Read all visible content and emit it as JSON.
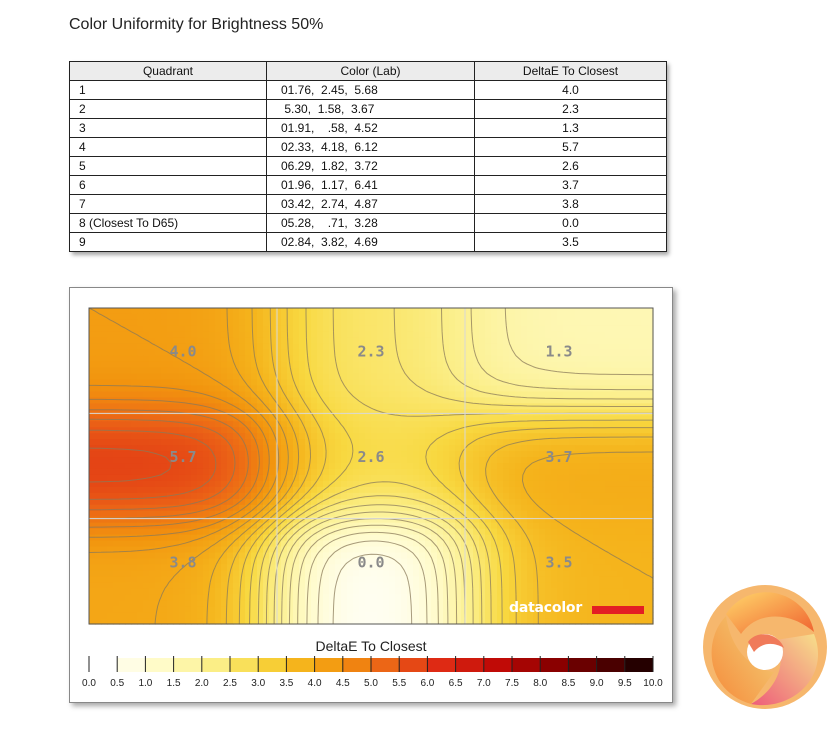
{
  "page_title": "Color Uniformity for Brightness 50%",
  "table": {
    "headers": [
      "Quadrant",
      "Color (Lab)",
      "DeltaE To Closest"
    ],
    "rows": [
      {
        "quadrant": "1",
        "lab": "01.76,  2.45,  5.68",
        "delta": "4.0"
      },
      {
        "quadrant": "2",
        "lab": " 5.30,  1.58,  3.67",
        "delta": "2.3"
      },
      {
        "quadrant": "3",
        "lab": "01.91,    .58,  4.52",
        "delta": "1.3"
      },
      {
        "quadrant": "4",
        "lab": "02.33,  4.18,  6.12",
        "delta": "5.7"
      },
      {
        "quadrant": "5",
        "lab": "06.29,  1.82,  3.72",
        "delta": "2.6"
      },
      {
        "quadrant": "6",
        "lab": "01.96,  1.17,  6.41",
        "delta": "3.7"
      },
      {
        "quadrant": "7",
        "lab": "03.42,  2.74,  4.87",
        "delta": "3.8"
      },
      {
        "quadrant": "8 (Closest To D65)",
        "lab": "05.28,    .71,  3.28",
        "delta": "0.0"
      },
      {
        "quadrant": "9",
        "lab": "02.84,  3.82,  4.69",
        "delta": "3.5"
      }
    ]
  },
  "chart_data": {
    "type": "heatmap",
    "title": "DeltaE To Closest",
    "grid": {
      "rows": 3,
      "cols": 3,
      "values": [
        [
          4.0,
          2.3,
          1.3
        ],
        [
          5.7,
          2.6,
          3.7
        ],
        [
          3.8,
          0.0,
          3.5
        ]
      ],
      "labels": [
        "4.0",
        "2.3",
        "1.3",
        "5.7",
        "2.6",
        "3.7",
        "3.8",
        "0.0",
        "3.5"
      ]
    },
    "scale": {
      "min": 0,
      "max": 10,
      "ticks": [
        "0.0",
        "0.5",
        "1.0",
        "1.5",
        "2.0",
        "2.5",
        "3.0",
        "3.5",
        "4.0",
        "4.5",
        "5.0",
        "5.5",
        "6.0",
        "6.5",
        "7.0",
        "7.5",
        "8.0",
        "8.5",
        "9.0",
        "9.5",
        "10.0"
      ],
      "stops": [
        {
          "v": 0.0,
          "color": "#ffffff"
        },
        {
          "v": 1.0,
          "color": "#fffbc8"
        },
        {
          "v": 2.0,
          "color": "#fbee86"
        },
        {
          "v": 2.8,
          "color": "#f8d840"
        },
        {
          "v": 3.5,
          "color": "#f5b41c"
        },
        {
          "v": 4.2,
          "color": "#f2940e"
        },
        {
          "v": 5.0,
          "color": "#ec6616"
        },
        {
          "v": 6.0,
          "color": "#de2a14"
        },
        {
          "v": 7.0,
          "color": "#c00a06"
        },
        {
          "v": 8.0,
          "color": "#8a0000"
        },
        {
          "v": 9.0,
          "color": "#4a0000"
        },
        {
          "v": 10.0,
          "color": "#000000"
        }
      ]
    },
    "contour_step": 0.25,
    "gridlines": true
  },
  "brand": {
    "logo_text": "datacolor",
    "logo_accent": "#e31e24"
  }
}
